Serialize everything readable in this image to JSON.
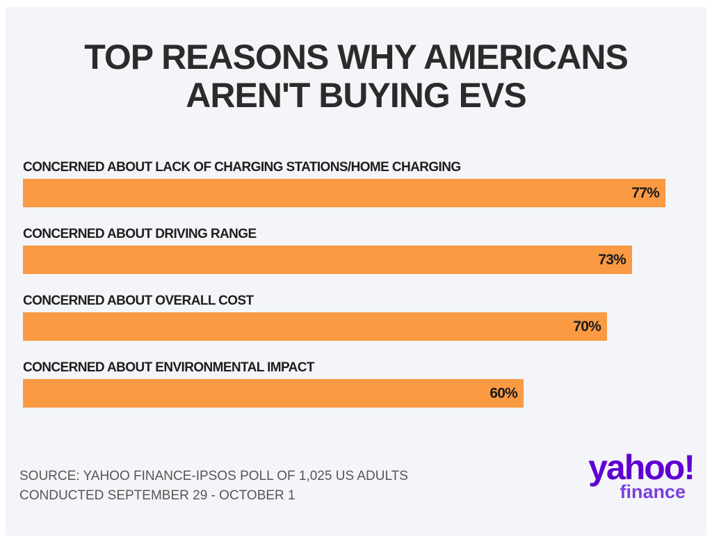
{
  "chart_data": {
    "type": "bar",
    "orientation": "horizontal",
    "title_lines": [
      "TOP REASONS WHY AMERICANS",
      "AREN'T BUYING EVS"
    ],
    "categories": [
      "CONCERNED ABOUT LACK OF CHARGING STATIONS/HOME CHARGING",
      "CONCERNED ABOUT DRIVING RANGE",
      "CONCERNED ABOUT OVERALL COST",
      "CONCERNED ABOUT ENVIRONMENTAL IMPACT"
    ],
    "values": [
      77,
      73,
      70,
      60
    ],
    "value_labels": [
      "77%",
      "73%",
      "70%",
      "60%"
    ],
    "color": "#fa9a43",
    "source_lines": [
      "SOURCE: YAHOO FINANCE-IPSOS POLL OF 1,025 US ADULTS",
      "CONDUCTED SEPTEMBER 29 - OCTOBER 1"
    ],
    "logo": [
      "yahoo!",
      "finance"
    ]
  }
}
